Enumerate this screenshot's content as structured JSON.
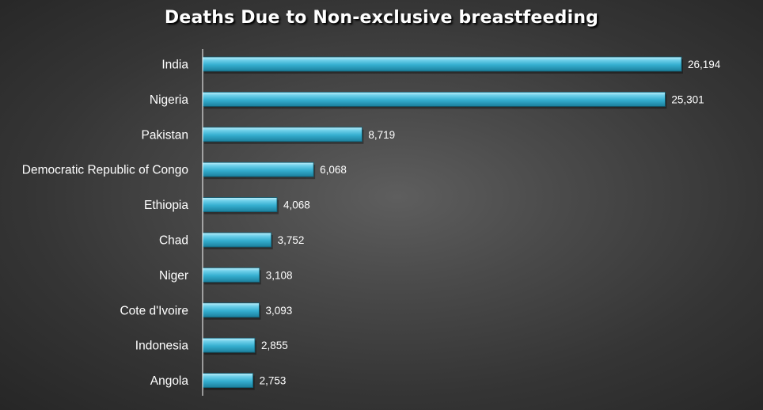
{
  "chart_data": {
    "type": "bar",
    "orientation": "horizontal",
    "title": "Deaths Due to Non-exclusive breastfeeding",
    "categories": [
      "India",
      "Nigeria",
      "Pakistan",
      "Democratic Republic of Congo",
      "Ethiopia",
      "Chad",
      "Niger",
      "Cote d'Ivoire",
      "Indonesia",
      "Angola"
    ],
    "values": [
      26194,
      25301,
      8719,
      6068,
      4068,
      3752,
      3108,
      3093,
      2855,
      2753
    ],
    "value_labels": [
      "26,194",
      "25,301",
      "8,719",
      "6,068",
      "4,068",
      "3,752",
      "3,108",
      "3,093",
      "2,855",
      "2,753"
    ],
    "xlim": [
      0,
      26194
    ],
    "grid": false,
    "bar_color": "#3cb4d2",
    "axis_color": "#ffffff",
    "text_color": "#ffffff"
  }
}
